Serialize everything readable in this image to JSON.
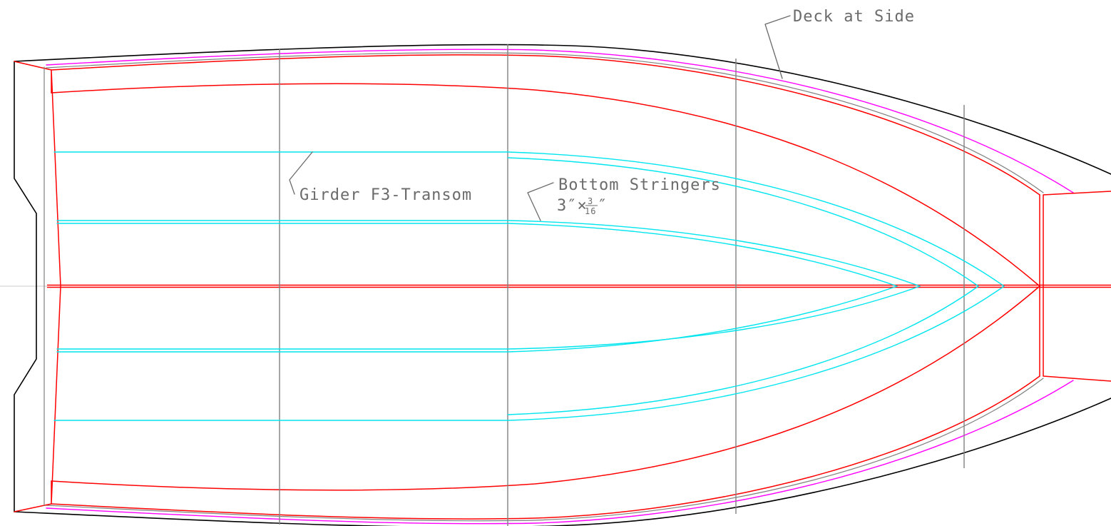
{
  "labels": {
    "deck_at_side": "Deck at Side",
    "girder": "Girder F3-Transom",
    "bottom_stringers": "Bottom Stringers",
    "stringer_size_prefix": "3″×",
    "stringer_size_num": "3",
    "stringer_size_den": "16",
    "stringer_size_suffix": "″"
  },
  "colors": {
    "outline": "#000000",
    "sheer_line": "#ff00ff",
    "structure": "#ff0000",
    "stringer": "#00e5ee",
    "station": "#808080",
    "text": "#6b6b6b"
  }
}
